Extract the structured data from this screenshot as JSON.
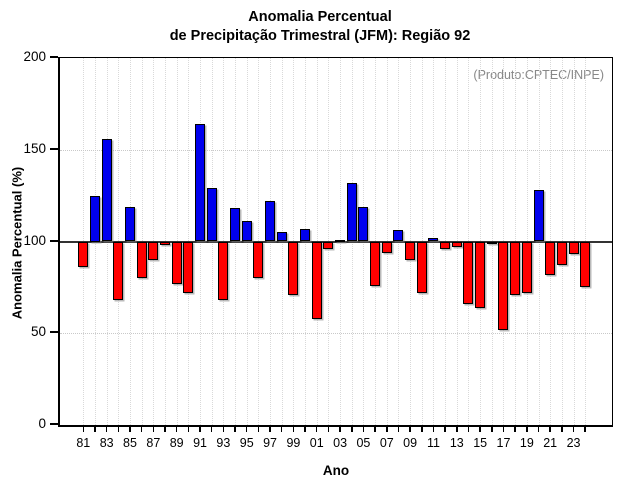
{
  "chart_data": {
    "type": "bar",
    "title_line1": "Anomalia Percentual",
    "title_line2": "de Precipitação Trimestral (JFM): Região 92",
    "ylabel": "Anomalia Percentual (%)",
    "xlabel": "Ano",
    "annotation": "(Produto:CPTEC/INPE)",
    "baseline": 100,
    "ylim": [
      0,
      200
    ],
    "ytick_values": [
      0,
      50,
      100,
      150,
      200
    ],
    "ytick_labels": [
      "0",
      "50",
      "100",
      "150",
      "200"
    ],
    "gridline_values": [
      50,
      150
    ],
    "xtick_labeled_years": [
      "81",
      "83",
      "85",
      "87",
      "89",
      "91",
      "93",
      "95",
      "97",
      "99",
      "01",
      "03",
      "05",
      "07",
      "09",
      "11",
      "13",
      "15",
      "17",
      "19",
      "21",
      "23"
    ],
    "categories": [
      "81",
      "82",
      "83",
      "84",
      "85",
      "86",
      "87",
      "88",
      "89",
      "90",
      "91",
      "92",
      "93",
      "94",
      "95",
      "96",
      "97",
      "98",
      "99",
      "00",
      "01",
      "02",
      "03",
      "04",
      "05",
      "06",
      "07",
      "08",
      "09",
      "10",
      "11",
      "12",
      "13",
      "14",
      "15",
      "16",
      "17",
      "18",
      "19",
      "20",
      "21",
      "22",
      "23",
      "24"
    ],
    "values": [
      86,
      125,
      156,
      68,
      119,
      80,
      90,
      98,
      77,
      72,
      164,
      129,
      68,
      118,
      111,
      80,
      122,
      105,
      71,
      107,
      58,
      96,
      101,
      132,
      119,
      76,
      94,
      106,
      90,
      72,
      102,
      96,
      97,
      66,
      64,
      99,
      52,
      71,
      72,
      128,
      82,
      87,
      93,
      75
    ],
    "colors": {
      "above_baseline": "#0000ee",
      "below_baseline": "#ff0000",
      "bar_outline": "#000000",
      "annotation_text": "#888888",
      "axis": "#000000",
      "grid": "#cccccc"
    },
    "legend": "none",
    "grid": "dotted horizontal at 50/150 and vertical per year"
  }
}
